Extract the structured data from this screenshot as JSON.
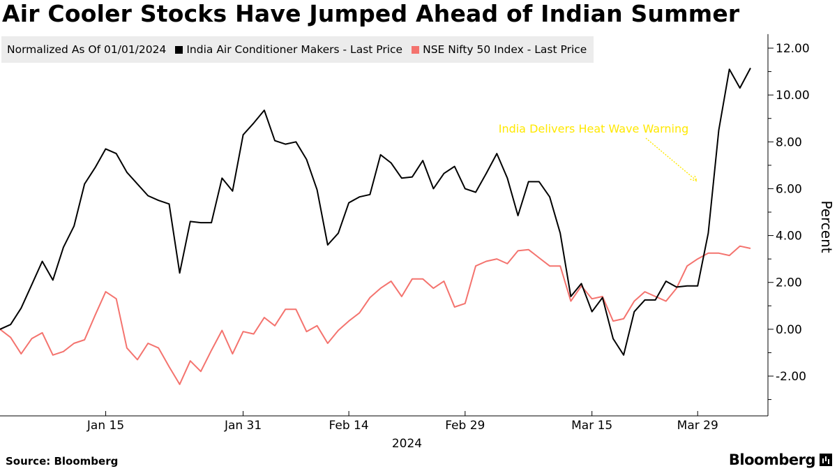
{
  "header": {
    "title": "Air Cooler Stocks Have Jumped Ahead of Indian Summer"
  },
  "legend": {
    "note": "Normalized As Of 01/01/2024",
    "items": [
      {
        "label": "India Air Conditioner Makers - Last Price",
        "color": "#000000"
      },
      {
        "label": "NSE Nifty 50 Index - Last Price",
        "color": "#f4736e"
      }
    ]
  },
  "footer": {
    "source": "Source: Bloomberg",
    "brand": "Bloomberg"
  },
  "chart_data": {
    "type": "line",
    "title": "Air Cooler Stocks Have Jumped Ahead of Indian Summer",
    "xlabel": "2024",
    "ylabel": "Percent",
    "ylim": [
      -3.8,
      12.6
    ],
    "yticks": [
      12,
      10,
      8,
      6,
      4,
      2,
      0,
      -2
    ],
    "ytick_labels": [
      "12.00",
      "10.00",
      "8.00",
      "6.00",
      "4.00",
      "2.00",
      "0.00",
      "-2.00"
    ],
    "n_points": 72,
    "xticks": [
      {
        "index": 10,
        "label": "Jan 15"
      },
      {
        "index": 23,
        "label": "Jan 31"
      },
      {
        "index": 33,
        "label": "Feb 14"
      },
      {
        "index": 44,
        "label": "Feb 29"
      },
      {
        "index": 56,
        "label": "Mar 15"
      },
      {
        "index": 66,
        "label": "Mar 29"
      }
    ],
    "year_label": "2024",
    "annotation": {
      "text": "India Delivers Heat Wave Warning",
      "index": 66,
      "value": 6.3,
      "color": "#ffe800"
    },
    "series": [
      {
        "name": "India Air Conditioner Makers - Last Price",
        "color": "#000000",
        "values": [
          0,
          0.2,
          0.9,
          1.9,
          2.9,
          2.1,
          3.5,
          4.4,
          6.2,
          6.9,
          7.7,
          7.5,
          6.7,
          6.2,
          5.7,
          5.5,
          5.35,
          2.4,
          4.6,
          4.55,
          4.55,
          6.45,
          5.9,
          8.3,
          8.8,
          9.35,
          8.05,
          7.9,
          8.0,
          7.25,
          5.95,
          3.6,
          4.1,
          5.4,
          5.65,
          5.75,
          7.45,
          7.1,
          6.45,
          6.5,
          7.2,
          6.0,
          6.65,
          6.95,
          6.0,
          5.85,
          6.65,
          7.5,
          6.45,
          4.85,
          6.3,
          6.3,
          5.65,
          4.1,
          1.4,
          1.95,
          0.75,
          1.35,
          -0.4,
          -1.1,
          0.75,
          1.25,
          1.25,
          2.05,
          1.8,
          1.85,
          1.85,
          4.1,
          8.5,
          11.1,
          10.3,
          11.15
        ]
      },
      {
        "name": "NSE Nifty 50 Index - Last Price",
        "color": "#f4736e",
        "values": [
          0,
          -0.35,
          -1.05,
          -0.4,
          -0.15,
          -1.1,
          -0.95,
          -0.6,
          -0.45,
          0.6,
          1.6,
          1.3,
          -0.8,
          -1.3,
          -0.6,
          -0.8,
          -1.6,
          -2.35,
          -1.35,
          -1.8,
          -0.9,
          -0.05,
          -1.05,
          -0.1,
          -0.2,
          0.5,
          0.15,
          0.85,
          0.85,
          -0.1,
          0.15,
          -0.6,
          -0.05,
          0.35,
          0.7,
          1.35,
          1.75,
          2.05,
          1.4,
          2.15,
          2.15,
          1.75,
          2.05,
          0.95,
          1.1,
          2.7,
          2.9,
          3.0,
          2.8,
          3.35,
          3.4,
          3.05,
          2.7,
          2.7,
          1.2,
          1.85,
          1.3,
          1.4,
          0.35,
          0.45,
          1.2,
          1.6,
          1.4,
          1.2,
          1.75,
          2.7,
          3.0,
          3.25,
          3.25,
          3.15,
          3.55,
          3.45
        ]
      }
    ]
  }
}
